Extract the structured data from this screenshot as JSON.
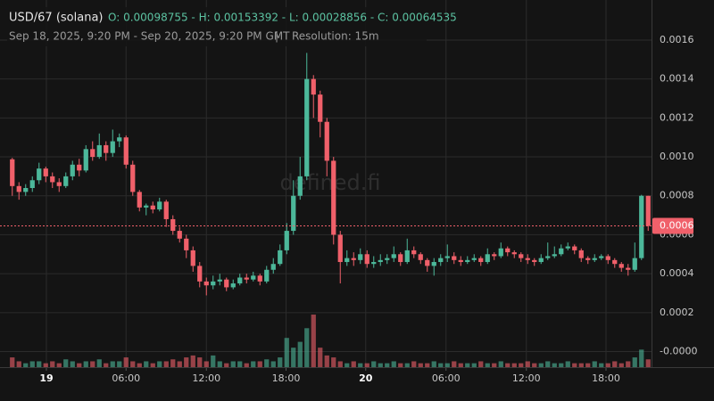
{
  "chart_data": {
    "type": "candlestick",
    "symbol": "USD/67 (solana)",
    "ohlc_text": "O: 0.00098755 - H: 0.00153392 - L: 0.00028856 - C: 0.00064535",
    "range_text": "Sep 18, 2025, 9:20 PM - Sep 20, 2025, 9:20 PM GMT",
    "separator": "|",
    "resolution_text": "Resolution: 15m",
    "watermark": "defined.fi",
    "up_color": "#4cb89a",
    "down_color": "#f0606a",
    "grid": true,
    "ylim": [
      -8e-05,
      0.00176
    ],
    "yticks": [
      {
        "value": 0,
        "label": "-0.0000"
      },
      0.0002,
      0.0004,
      0.0006,
      0.0008,
      {
        "value": 0.001,
        "label": "0.0010"
      },
      0.0012,
      0.0014,
      0.0016
    ],
    "xlim": [
      0,
      96
    ],
    "xticks": [
      {
        "value": 5.6,
        "label": "19"
      },
      {
        "value": 17.5,
        "label": "06:00"
      },
      {
        "value": 29.5,
        "label": "12:00"
      },
      {
        "value": 41.4,
        "label": "18:00"
      },
      {
        "value": 53.3,
        "label": "20"
      },
      {
        "value": 65.3,
        "label": "06:00"
      },
      {
        "value": 77.3,
        "label": "12:00"
      },
      {
        "value": 89.2,
        "label": "18:00"
      }
    ],
    "last_price": {
      "value": 0.00064535,
      "label": "0.0006"
    },
    "open": [
      0.00098755,
      0.00085,
      0.00082,
      0.00084,
      0.00088,
      0.00094,
      0.0009,
      0.00087,
      0.00085,
      0.0009,
      0.00096,
      0.00093,
      0.00104,
      0.001,
      0.00106,
      0.00102,
      0.00108,
      0.0011,
      0.00096,
      0.00082,
      0.00074,
      0.00075,
      0.00073,
      0.00077,
      0.00068,
      0.00062,
      0.00058,
      0.00052,
      0.00044,
      0.00036,
      0.00034,
      0.00036,
      0.00037,
      0.00033,
      0.00035,
      0.00038,
      0.00037,
      0.00039,
      0.00036,
      0.00042,
      0.00045,
      0.00052,
      0.00062,
      0.0008,
      0.0009,
      0.0014,
      0.00132,
      0.00118,
      0.00098,
      0.0006,
      0.00046,
      0.00048,
      0.00047,
      0.0005,
      0.00045,
      0.00046,
      0.00047,
      0.00048,
      0.0005,
      0.00046,
      0.00052,
      0.0005,
      0.00047,
      0.00044,
      0.00046,
      0.00048,
      0.00049,
      0.00047,
      0.00046,
      0.00047,
      0.00048,
      0.00046,
      0.0005,
      0.00049,
      0.00053,
      0.00051,
      0.0005,
      0.00048,
      0.00047,
      0.00046,
      0.00048,
      0.00049,
      0.0005,
      0.00053,
      0.00054,
      0.00052,
      0.00048,
      0.00047,
      0.00048,
      0.00049,
      0.00047,
      0.00045,
      0.00043,
      0.00042,
      0.00048,
      0.0008
    ],
    "high": [
      0.000995,
      0.00087,
      0.00086,
      0.0009,
      0.00097,
      0.00095,
      0.00092,
      0.00089,
      0.00092,
      0.00098,
      0.00099,
      0.00106,
      0.00108,
      0.00112,
      0.00108,
      0.00114,
      0.00112,
      0.00111,
      0.00098,
      0.00083,
      0.00076,
      0.00077,
      0.00079,
      0.00078,
      0.0007,
      0.00064,
      0.0006,
      0.00054,
      0.00046,
      0.00038,
      0.00039,
      0.0004,
      0.00038,
      0.00037,
      0.0004,
      0.0004,
      0.00041,
      0.0004,
      0.00044,
      0.00048,
      0.00055,
      0.00066,
      0.00088,
      0.001,
      0.00153392,
      0.00142,
      0.00134,
      0.0012,
      0.001,
      0.00062,
      0.00052,
      0.00051,
      0.00053,
      0.00052,
      0.00049,
      0.0005,
      0.0005,
      0.00054,
      0.00051,
      0.00058,
      0.00054,
      0.00051,
      0.00048,
      0.00048,
      0.0005,
      0.00055,
      0.00051,
      0.00049,
      0.00049,
      0.0005,
      0.00049,
      0.00053,
      0.00051,
      0.00056,
      0.00054,
      0.00052,
      0.00051,
      0.0005,
      0.00048,
      0.0005,
      0.00056,
      0.00054,
      0.00055,
      0.00056,
      0.00055,
      0.00053,
      0.00049,
      0.0005,
      0.0005,
      0.0005,
      0.00048,
      0.00046,
      0.00045,
      0.00056,
      0.000805,
      0.0008
    ],
    "low": [
      0.0008,
      0.00078,
      0.0008,
      0.00082,
      0.00086,
      0.00087,
      0.00084,
      0.00082,
      0.00084,
      0.00088,
      0.0009,
      0.00092,
      0.00098,
      0.00099,
      0.00098,
      0.001,
      0.00105,
      0.00094,
      0.0008,
      0.00072,
      0.0007,
      0.00071,
      0.00072,
      0.00064,
      0.0006,
      0.00056,
      0.00048,
      0.00041,
      0.00033,
      0.00028856,
      0.00032,
      0.00034,
      0.00031,
      0.00032,
      0.00034,
      0.00035,
      0.00036,
      0.00034,
      0.00035,
      0.0004,
      0.00044,
      0.0005,
      0.0006,
      0.00078,
      0.00088,
      0.0012,
      0.0011,
      0.0009,
      0.00055,
      0.00035,
      0.00044,
      0.00044,
      0.00045,
      0.00043,
      0.00043,
      0.00044,
      0.00045,
      0.00046,
      0.00044,
      0.00045,
      0.00048,
      0.00045,
      0.00041,
      0.00039,
      0.00044,
      0.00046,
      0.00045,
      0.00044,
      0.00045,
      0.00046,
      0.00044,
      0.00045,
      0.00047,
      0.00048,
      0.00049,
      0.00048,
      0.00046,
      0.00045,
      0.00044,
      0.00045,
      0.00047,
      0.00048,
      0.00049,
      0.00052,
      0.0005,
      0.00046,
      0.00045,
      0.00046,
      0.00047,
      0.00045,
      0.00043,
      0.00041,
      0.00039,
      0.00041,
      0.00047,
      0.00062
    ],
    "close": [
      0.00085,
      0.00082,
      0.00084,
      0.00088,
      0.00094,
      0.0009,
      0.00087,
      0.00085,
      0.0009,
      0.00096,
      0.00093,
      0.00104,
      0.001,
      0.00106,
      0.00102,
      0.00108,
      0.0011,
      0.00096,
      0.00082,
      0.00074,
      0.00075,
      0.00073,
      0.00077,
      0.00068,
      0.00062,
      0.00058,
      0.00052,
      0.00044,
      0.00036,
      0.00034,
      0.00036,
      0.00037,
      0.00033,
      0.00035,
      0.00038,
      0.00037,
      0.00039,
      0.00036,
      0.00042,
      0.00045,
      0.00052,
      0.00062,
      0.0008,
      0.0009,
      0.0014,
      0.00132,
      0.00118,
      0.00098,
      0.0006,
      0.00046,
      0.00048,
      0.00047,
      0.0005,
      0.00045,
      0.00046,
      0.00047,
      0.00048,
      0.0005,
      0.00046,
      0.00052,
      0.0005,
      0.00047,
      0.00044,
      0.00046,
      0.00048,
      0.00049,
      0.00047,
      0.00046,
      0.00047,
      0.00048,
      0.00046,
      0.0005,
      0.00049,
      0.00053,
      0.00051,
      0.0005,
      0.00048,
      0.00047,
      0.00046,
      0.00048,
      0.00049,
      0.0005,
      0.00053,
      0.00054,
      0.00052,
      0.00048,
      0.00047,
      0.00048,
      0.00049,
      0.00047,
      0.00045,
      0.00043,
      0.00042,
      0.00048,
      0.0008,
      0.00064535
    ],
    "volume": [
      -3e-05,
      -5e-05,
      -6e-05,
      -5e-05,
      -5e-05,
      -6e-05,
      -5e-05,
      -6e-05,
      -4e-05,
      -5e-05,
      -6e-05,
      -5e-05,
      -5e-05,
      -4e-05,
      -6e-05,
      -5e-05,
      -5e-05,
      -3e-05,
      -5e-05,
      -6e-05,
      -5e-05,
      -6e-05,
      -5e-05,
      -5e-05,
      -4e-05,
      -5e-05,
      -3e-05,
      -2e-05,
      -3e-05,
      -5e-05,
      -2e-05,
      -5e-05,
      -6e-05,
      -5e-05,
      -5e-05,
      -6e-05,
      -5e-05,
      -5e-05,
      -4e-05,
      -5e-05,
      -3e-05,
      7e-05,
      2e-05,
      5e-05,
      0.00012,
      0.00019,
      2e-05,
      -2e-05,
      -3e-05,
      -5e-05,
      -6e-05,
      -5e-05,
      -6e-05,
      -6e-05,
      -5e-05,
      -6e-05,
      -6e-05,
      -5e-05,
      -6e-05,
      -6e-05,
      -5e-05,
      -6e-05,
      -6e-05,
      -5e-05,
      -6e-05,
      -6e-05,
      -5e-05,
      -6e-05,
      -6e-05,
      -6e-05,
      -5e-05,
      -6e-05,
      -6e-05,
      -5e-05,
      -6e-05,
      -6e-05,
      -6e-05,
      -5e-05,
      -6e-05,
      -6e-05,
      -5e-05,
      -6e-05,
      -6e-05,
      -5e-05,
      -6e-05,
      -6e-05,
      -6e-05,
      -5e-05,
      -6e-05,
      -6e-05,
      -5e-05,
      -6e-05,
      -5e-05,
      -3e-05,
      1e-05,
      -4e-05
    ]
  }
}
